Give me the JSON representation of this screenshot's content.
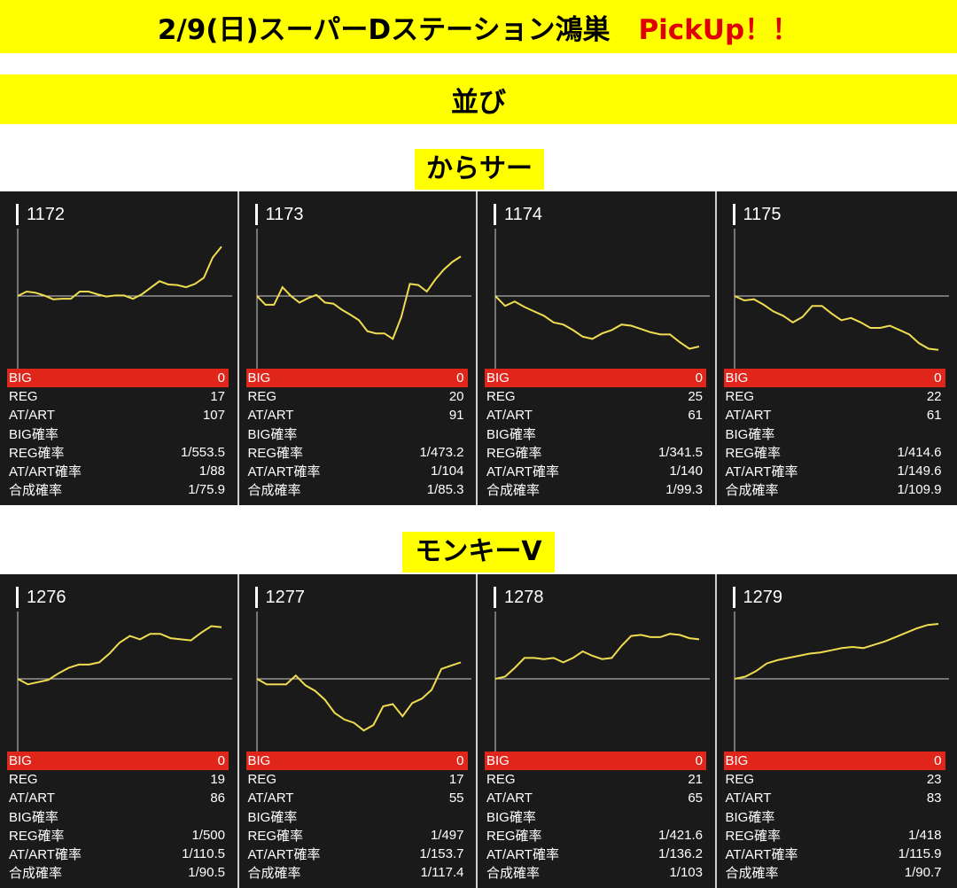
{
  "header": {
    "title": "2/9(日)スーパーDステーション鴻巣",
    "pickup": "PickUp！！",
    "subtitle": "並び"
  },
  "colors": {
    "banner": "#ffff00",
    "pickup": "#e00000",
    "panel_bg": "#1a1a1a",
    "big_row": "#e0261b",
    "line": "#f0dc50"
  },
  "stat_labels": {
    "big": "BIG",
    "reg": "REG",
    "at": "AT/ART",
    "big_rate": "BIG確率",
    "reg_rate": "REG確率",
    "at_rate": "AT/ART確率",
    "combined_rate": "合成確率"
  },
  "sections": [
    {
      "name": "からサー",
      "machines": [
        {
          "number": "1172",
          "big": "0",
          "reg": "17",
          "at": "107",
          "big_rate": "",
          "reg_rate": "1/553.5",
          "at_rate": "1/88",
          "combined_rate": "1/75.9",
          "trend": [
            0,
            0.08,
            0.06,
            0.01,
            -0.06,
            -0.05,
            -0.05,
            0.08,
            0.08,
            0.03,
            -0.01,
            0.01,
            0.01,
            -0.05,
            0.03,
            0.15,
            0.27,
            0.21,
            0.2,
            0.16,
            0.22,
            0.33,
            0.7,
            0.9
          ]
        },
        {
          "number": "1173",
          "big": "0",
          "reg": "20",
          "at": "91",
          "big_rate": "",
          "reg_rate": "1/473.2",
          "at_rate": "1/104",
          "combined_rate": "1/85.3",
          "trend": [
            0,
            -0.16,
            -0.16,
            0.16,
            0,
            -0.12,
            -0.04,
            0.02,
            -0.12,
            -0.14,
            -0.25,
            -0.34,
            -0.44,
            -0.64,
            -0.68,
            -0.68,
            -0.78,
            -0.38,
            0.22,
            0.2,
            0.08,
            0.3,
            0.48,
            0.62,
            0.72
          ]
        },
        {
          "number": "1174",
          "big": "0",
          "reg": "25",
          "at": "61",
          "big_rate": "",
          "reg_rate": "1/341.5",
          "at_rate": "1/140",
          "combined_rate": "1/99.3",
          "trend": [
            0,
            -0.18,
            -0.1,
            -0.2,
            -0.28,
            -0.36,
            -0.48,
            -0.52,
            -0.62,
            -0.74,
            -0.78,
            -0.68,
            -0.62,
            -0.52,
            -0.54,
            -0.6,
            -0.66,
            -0.7,
            -0.7,
            -0.84,
            -0.96,
            -0.92
          ]
        },
        {
          "number": "1175",
          "big": "0",
          "reg": "22",
          "at": "61",
          "big_rate": "",
          "reg_rate": "1/414.6",
          "at_rate": "1/149.6",
          "combined_rate": "1/109.9",
          "trend": [
            0,
            -0.08,
            -0.06,
            -0.16,
            -0.28,
            -0.36,
            -0.48,
            -0.38,
            -0.18,
            -0.18,
            -0.32,
            -0.44,
            -0.4,
            -0.48,
            -0.58,
            -0.58,
            -0.54,
            -0.62,
            -0.7,
            -0.86,
            -0.96,
            -0.98
          ]
        }
      ]
    },
    {
      "name": "モンキーV",
      "machines": [
        {
          "number": "1276",
          "big": "0",
          "reg": "19",
          "at": "86",
          "big_rate": "",
          "reg_rate": "1/500",
          "at_rate": "1/110.5",
          "combined_rate": "1/90.5",
          "trend": [
            0,
            -0.1,
            -0.06,
            -0.02,
            0.1,
            0.2,
            0.26,
            0.26,
            0.3,
            0.46,
            0.66,
            0.78,
            0.72,
            0.82,
            0.82,
            0.74,
            0.72,
            0.7,
            0.84,
            0.96,
            0.94
          ]
        },
        {
          "number": "1277",
          "big": "0",
          "reg": "17",
          "at": "55",
          "big_rate": "",
          "reg_rate": "1/497",
          "at_rate": "1/153.7",
          "combined_rate": "1/117.4",
          "trend": [
            0,
            -0.1,
            -0.1,
            -0.1,
            0.06,
            -0.12,
            -0.22,
            -0.38,
            -0.62,
            -0.74,
            -0.8,
            -0.94,
            -0.84,
            -0.5,
            -0.46,
            -0.68,
            -0.44,
            -0.36,
            -0.2,
            0.18,
            0.24,
            0.3
          ]
        },
        {
          "number": "1278",
          "big": "0",
          "reg": "21",
          "at": "65",
          "big_rate": "",
          "reg_rate": "1/421.6",
          "at_rate": "1/136.2",
          "combined_rate": "1/103",
          "trend": [
            0,
            0.04,
            0.2,
            0.38,
            0.38,
            0.36,
            0.38,
            0.3,
            0.38,
            0.5,
            0.42,
            0.36,
            0.38,
            0.6,
            0.78,
            0.8,
            0.76,
            0.76,
            0.82,
            0.8,
            0.74,
            0.72
          ]
        },
        {
          "number": "1279",
          "big": "0",
          "reg": "23",
          "at": "83",
          "big_rate": "",
          "reg_rate": "1/418",
          "at_rate": "1/115.9",
          "combined_rate": "1/90.7",
          "trend": [
            0,
            0.04,
            0.14,
            0.28,
            0.34,
            0.38,
            0.42,
            0.46,
            0.48,
            0.52,
            0.56,
            0.58,
            0.56,
            0.62,
            0.68,
            0.76,
            0.84,
            0.92,
            0.98,
            1.0
          ]
        }
      ]
    }
  ]
}
